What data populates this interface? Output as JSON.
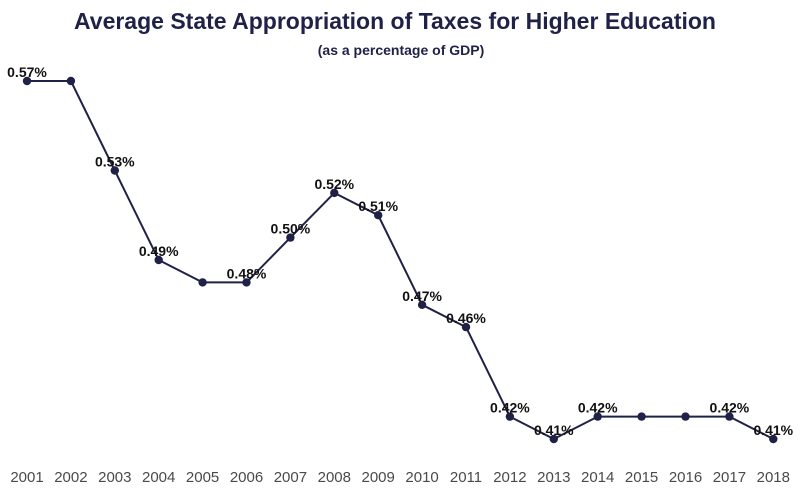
{
  "chart_data": {
    "type": "line",
    "title": "Average State Appropriation of Taxes for Higher Education",
    "subtitle": "(as a percentage of GDP)",
    "xlabel": "",
    "ylabel": "",
    "categories": [
      "2001",
      "2002",
      "2003",
      "2004",
      "2005",
      "2006",
      "2007",
      "2008",
      "2009",
      "2010",
      "2011",
      "2012",
      "2013",
      "2014",
      "2015",
      "2016",
      "2017",
      "2018"
    ],
    "series": [
      {
        "values": [
          0.57,
          0.57,
          0.53,
          0.49,
          0.48,
          0.48,
          0.5,
          0.52,
          0.51,
          0.47,
          0.46,
          0.42,
          0.41,
          0.42,
          0.42,
          0.42,
          0.42,
          0.41
        ],
        "labels": [
          "0.57%",
          "",
          "0.53%",
          "0.49%",
          "",
          "0.48%",
          "0.50%",
          "0.52%",
          "0.51%",
          "0.47%",
          "0.46%",
          "0.42%",
          "0.41%",
          "0.42%",
          "",
          "",
          "0.42%",
          "0.41%"
        ]
      }
    ],
    "ylim": [
      0.41,
      0.57
    ],
    "grid": false,
    "legend": "none",
    "line_color": "#1f2147",
    "marker_color": "#1f2147"
  }
}
